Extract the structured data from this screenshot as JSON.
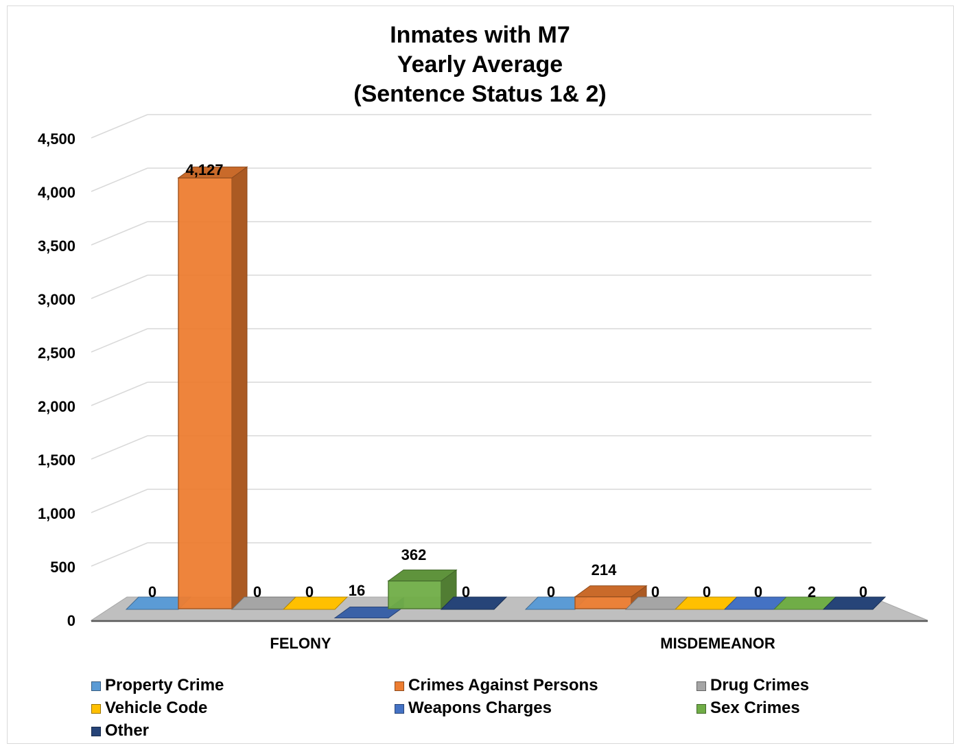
{
  "chart_data": {
    "type": "bar",
    "title": [
      "Inmates with M7",
      "Yearly Average",
      "(Sentence Status 1& 2)"
    ],
    "categories": [
      "FELONY",
      "MISDEMEANOR"
    ],
    "ylim": [
      0,
      4500
    ],
    "yticks": [
      0,
      500,
      1000,
      1500,
      2000,
      2500,
      3000,
      3500,
      4000,
      4500
    ],
    "ytick_labels": [
      "0",
      "500",
      "1,000",
      "1,500",
      "2,000",
      "2,500",
      "3,000",
      "3,500",
      "4,000",
      "4,500"
    ],
    "grid": true,
    "legend_position": "bottom",
    "series": [
      {
        "name": "Property Crime",
        "color": "#5b9bd5",
        "values": [
          0,
          0
        ],
        "labels": [
          "0",
          "0"
        ]
      },
      {
        "name": "Crimes Against Persons",
        "color": "#ed7d31",
        "values": [
          4127,
          214
        ],
        "labels": [
          "4,127",
          "214"
        ]
      },
      {
        "name": "Drug Crimes",
        "color": "#a5a5a5",
        "values": [
          0,
          0
        ],
        "labels": [
          "0",
          "0"
        ]
      },
      {
        "name": "Vehicle Code",
        "color": "#ffc000",
        "values": [
          0,
          0
        ],
        "labels": [
          "0",
          "0"
        ]
      },
      {
        "name": "Weapons Charges",
        "color": "#4472c4",
        "values": [
          16,
          0
        ],
        "labels": [
          "16",
          "0"
        ]
      },
      {
        "name": "Sex Crimes",
        "color": "#70ad47",
        "values": [
          362,
          2
        ],
        "labels": [
          "362",
          "2"
        ]
      },
      {
        "name": "Other",
        "color": "#264478",
        "values": [
          0,
          0
        ],
        "labels": [
          "0",
          "0"
        ]
      }
    ]
  }
}
